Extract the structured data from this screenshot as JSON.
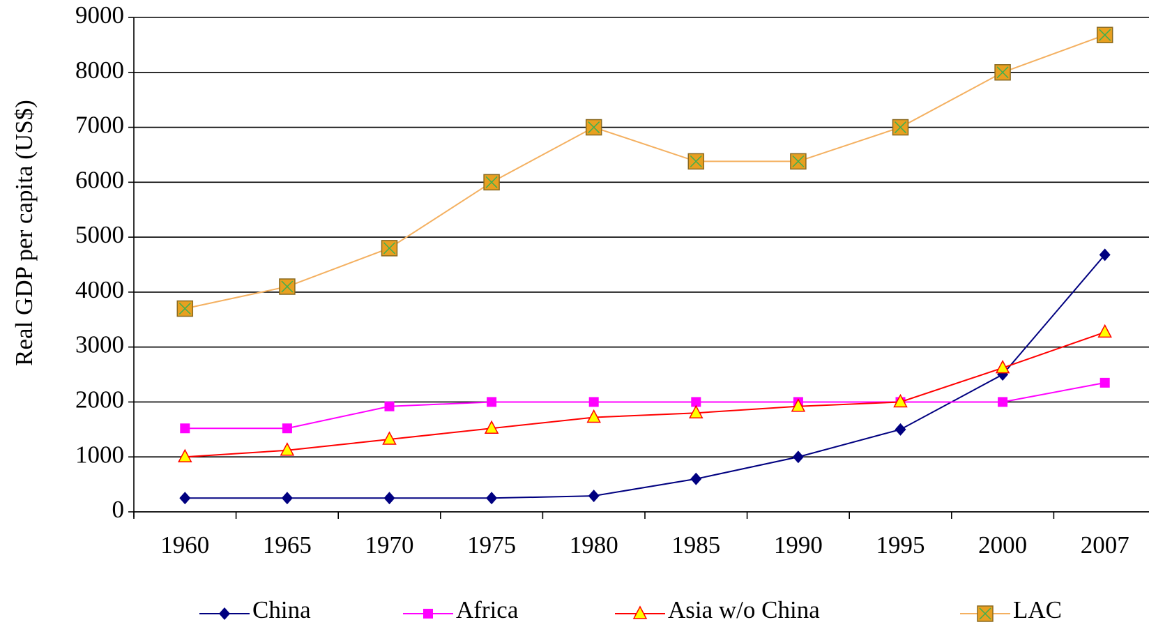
{
  "chart_data": {
    "type": "line",
    "y_label": "Real GDP per capita (US$)",
    "categories": [
      "1960",
      "1965",
      "1970",
      "1975",
      "1980",
      "1985",
      "1990",
      "1995",
      "2000",
      "2007"
    ],
    "series": [
      {
        "name": "China",
        "color": "#000080",
        "marker": "diamond",
        "marker_color": "#000080",
        "values": [
          250,
          250,
          250,
          250,
          290,
          600,
          1000,
          1500,
          2500,
          4680
        ]
      },
      {
        "name": "Africa",
        "color": "#ff00ff",
        "marker": "square",
        "marker_color": "#ff00ff",
        "values": [
          1520,
          1520,
          1920,
          2000,
          2000,
          2000,
          2000,
          2000,
          2000,
          2350
        ]
      },
      {
        "name": "Asia w/o China",
        "color": "#ff0000",
        "marker": "triangle",
        "marker_color": "#ffff00",
        "values": [
          1000,
          1120,
          1320,
          1520,
          1720,
          1800,
          1920,
          2000,
          2620,
          3270
        ]
      },
      {
        "name": "LAC",
        "color": "#f4b060",
        "marker": "xsquare",
        "marker_color": "#e8a020",
        "values": [
          3700,
          4100,
          4800,
          6000,
          7000,
          6380,
          6380,
          7000,
          8000,
          8680
        ]
      }
    ],
    "ylim": [
      0,
      9000
    ],
    "yticks": [
      0,
      1000,
      2000,
      3000,
      4000,
      5000,
      6000,
      7000,
      8000,
      9000
    ],
    "grid": true,
    "legend": "bottom"
  }
}
